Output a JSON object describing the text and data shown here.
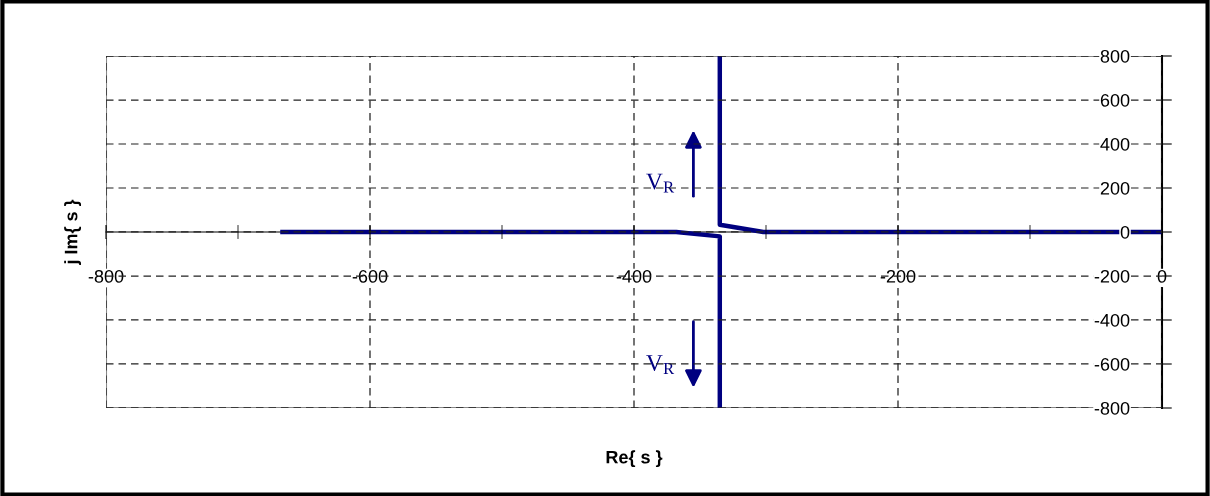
{
  "chart_data": {
    "type": "line",
    "xlabel": "Re{ s }",
    "ylabel": "j Im{ s }",
    "xlim": [
      -800,
      0
    ],
    "ylim": [
      -800,
      800
    ],
    "xticks": [
      -800,
      {
        "value": -700,
        "label": null
      },
      -600,
      {
        "value": -500,
        "label": null
      },
      -400,
      {
        "value": -300,
        "label": null
      },
      -200,
      {
        "value": -100,
        "label": null
      },
      0
    ],
    "yticks": [
      -800,
      -600,
      -400,
      -200,
      0,
      200,
      400,
      600,
      800
    ],
    "grid": true,
    "line_style": "solid",
    "marker": "none",
    "series": [
      {
        "color": "#000080",
        "x": [
          -668,
          -368,
          -335,
          -335
        ],
        "values": [
          0,
          0,
          -20,
          -800
        ]
      },
      {
        "color": "#000080",
        "x": [
          0,
          -302,
          -335,
          -335
        ],
        "values": [
          0,
          0,
          33,
          800
        ]
      }
    ],
    "annotations": [
      {
        "text": "V$_{R}$",
        "x": -380,
        "y": 220
      },
      {
        "text": "V$_{R}$",
        "x": -380,
        "y": -605
      }
    ]
  }
}
